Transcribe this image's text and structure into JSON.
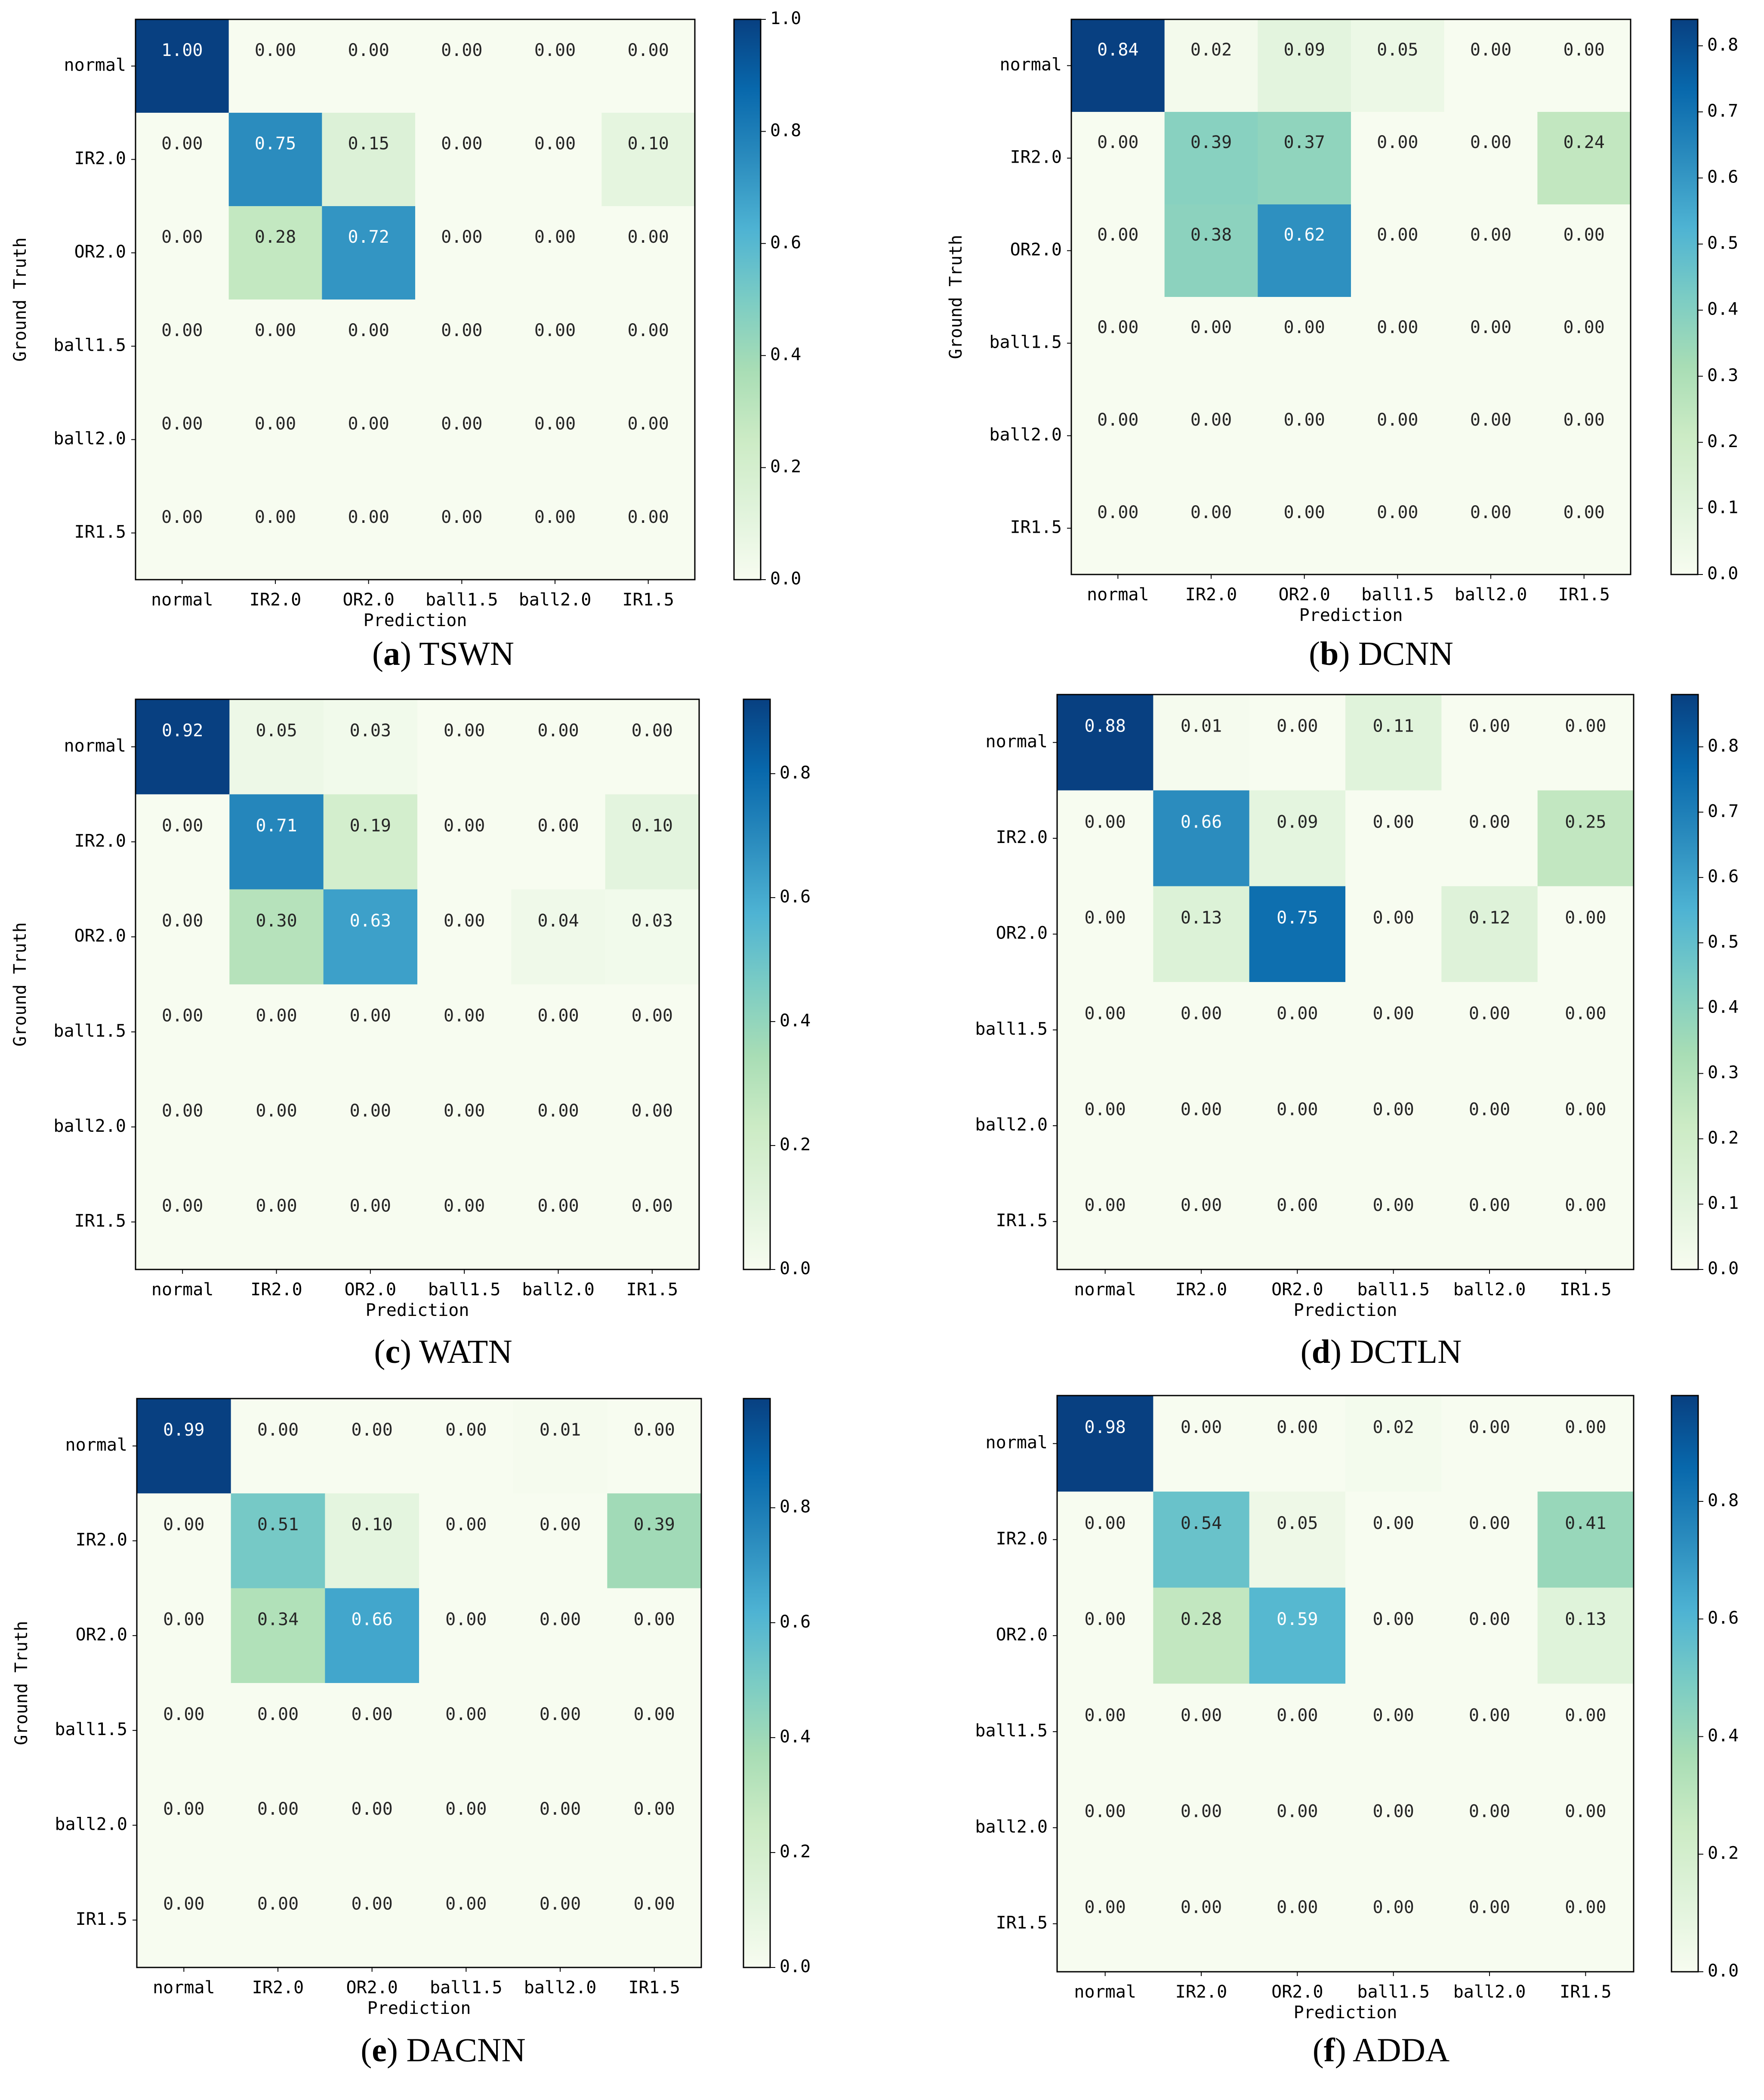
{
  "chart_data": [
    {
      "type": "heatmap",
      "panel_label": "a",
      "caption": "TSWN",
      "xlabel": "Prediction",
      "ylabel": "Ground Truth",
      "x_categories": [
        "normal",
        "IR2.0",
        "OR2.0",
        "ball1.5",
        "ball2.0",
        "IR1.5"
      ],
      "y_categories": [
        "normal",
        "IR2.0",
        "OR2.0",
        "ball1.5",
        "ball2.0",
        "IR1.5"
      ],
      "values": [
        [
          1.0,
          0.0,
          0.0,
          0.0,
          0.0,
          0.0
        ],
        [
          0.0,
          0.75,
          0.15,
          0.0,
          0.0,
          0.1
        ],
        [
          0.0,
          0.28,
          0.72,
          0.0,
          0.0,
          0.0
        ],
        [
          0.0,
          0.0,
          0.0,
          0.0,
          0.0,
          0.0
        ],
        [
          0.0,
          0.0,
          0.0,
          0.0,
          0.0,
          0.0
        ],
        [
          0.0,
          0.0,
          0.0,
          0.0,
          0.0,
          0.0
        ]
      ],
      "colorbar_range": [
        0,
        1.0
      ],
      "colorbar_ticks": [
        "0.0",
        "0.2",
        "0.4",
        "0.6",
        "0.8",
        "1.0"
      ]
    },
    {
      "type": "heatmap",
      "panel_label": "b",
      "caption": "DCNN",
      "xlabel": "Prediction",
      "ylabel": "Ground Truth",
      "x_categories": [
        "normal",
        "IR2.0",
        "OR2.0",
        "ball1.5",
        "ball2.0",
        "IR1.5"
      ],
      "y_categories": [
        "normal",
        "IR2.0",
        "OR2.0",
        "ball1.5",
        "ball2.0",
        "IR1.5"
      ],
      "values": [
        [
          0.84,
          0.02,
          0.09,
          0.05,
          0.0,
          0.0
        ],
        [
          0.0,
          0.39,
          0.37,
          0.0,
          0.0,
          0.24
        ],
        [
          0.0,
          0.38,
          0.62,
          0.0,
          0.0,
          0.0
        ],
        [
          0.0,
          0.0,
          0.0,
          0.0,
          0.0,
          0.0
        ],
        [
          0.0,
          0.0,
          0.0,
          0.0,
          0.0,
          0.0
        ],
        [
          0.0,
          0.0,
          0.0,
          0.0,
          0.0,
          0.0
        ]
      ],
      "colorbar_range": [
        0,
        0.84
      ],
      "colorbar_ticks": [
        "0.0",
        "0.1",
        "0.2",
        "0.3",
        "0.4",
        "0.5",
        "0.6",
        "0.7",
        "0.8"
      ]
    },
    {
      "type": "heatmap",
      "panel_label": "c",
      "caption": "WATN",
      "xlabel": "Prediction",
      "ylabel": "Ground Truth",
      "x_categories": [
        "normal",
        "IR2.0",
        "OR2.0",
        "ball1.5",
        "ball2.0",
        "IR1.5"
      ],
      "y_categories": [
        "normal",
        "IR2.0",
        "OR2.0",
        "ball1.5",
        "ball2.0",
        "IR1.5"
      ],
      "values": [
        [
          0.92,
          0.05,
          0.03,
          0.0,
          0.0,
          0.0
        ],
        [
          0.0,
          0.71,
          0.19,
          0.0,
          0.0,
          0.1
        ],
        [
          0.0,
          0.3,
          0.63,
          0.0,
          0.04,
          0.03
        ],
        [
          0.0,
          0.0,
          0.0,
          0.0,
          0.0,
          0.0
        ],
        [
          0.0,
          0.0,
          0.0,
          0.0,
          0.0,
          0.0
        ],
        [
          0.0,
          0.0,
          0.0,
          0.0,
          0.0,
          0.0
        ]
      ],
      "colorbar_range": [
        0,
        0.92
      ],
      "colorbar_ticks": [
        "0.0",
        "0.2",
        "0.4",
        "0.6",
        "0.8"
      ]
    },
    {
      "type": "heatmap",
      "panel_label": "d",
      "caption": "DCTLN",
      "xlabel": "Prediction",
      "ylabel": "",
      "x_categories": [
        "normal",
        "IR2.0",
        "OR2.0",
        "ball1.5",
        "ball2.0",
        "IR1.5"
      ],
      "y_categories": [
        "normal",
        "IR2.0",
        "OR2.0",
        "ball1.5",
        "ball2.0",
        "IR1.5"
      ],
      "values": [
        [
          0.88,
          0.01,
          0.0,
          0.11,
          0.0,
          0.0
        ],
        [
          0.0,
          0.66,
          0.09,
          0.0,
          0.0,
          0.25
        ],
        [
          0.0,
          0.13,
          0.75,
          0.0,
          0.12,
          0.0
        ],
        [
          0.0,
          0.0,
          0.0,
          0.0,
          0.0,
          0.0
        ],
        [
          0.0,
          0.0,
          0.0,
          0.0,
          0.0,
          0.0
        ],
        [
          0.0,
          0.0,
          0.0,
          0.0,
          0.0,
          0.0
        ]
      ],
      "colorbar_range": [
        0,
        0.88
      ],
      "colorbar_ticks": [
        "0.0",
        "0.1",
        "0.2",
        "0.3",
        "0.4",
        "0.5",
        "0.6",
        "0.7",
        "0.8"
      ]
    },
    {
      "type": "heatmap",
      "panel_label": "e",
      "caption": "DACNN",
      "xlabel": "Prediction",
      "ylabel": "Ground Truth",
      "x_categories": [
        "normal",
        "IR2.0",
        "OR2.0",
        "ball1.5",
        "ball2.0",
        "IR1.5"
      ],
      "y_categories": [
        "normal",
        "IR2.0",
        "OR2.0",
        "ball1.5",
        "ball2.0",
        "IR1.5"
      ],
      "values": [
        [
          0.99,
          0.0,
          0.0,
          0.0,
          0.01,
          0.0
        ],
        [
          0.0,
          0.51,
          0.1,
          0.0,
          0.0,
          0.39
        ],
        [
          0.0,
          0.34,
          0.66,
          0.0,
          0.0,
          0.0
        ],
        [
          0.0,
          0.0,
          0.0,
          0.0,
          0.0,
          0.0
        ],
        [
          0.0,
          0.0,
          0.0,
          0.0,
          0.0,
          0.0
        ],
        [
          0.0,
          0.0,
          0.0,
          0.0,
          0.0,
          0.0
        ]
      ],
      "colorbar_range": [
        0,
        0.99
      ],
      "colorbar_ticks": [
        "0.0",
        "0.2",
        "0.4",
        "0.6",
        "0.8"
      ]
    },
    {
      "type": "heatmap",
      "panel_label": "f",
      "caption": "ADDA",
      "xlabel": "Prediction",
      "ylabel": "",
      "x_categories": [
        "normal",
        "IR2.0",
        "OR2.0",
        "ball1.5",
        "ball2.0",
        "IR1.5"
      ],
      "y_categories": [
        "normal",
        "IR2.0",
        "OR2.0",
        "ball1.5",
        "ball2.0",
        "IR1.5"
      ],
      "values": [
        [
          0.98,
          0.0,
          0.0,
          0.02,
          0.0,
          0.0
        ],
        [
          0.0,
          0.54,
          0.05,
          0.0,
          0.0,
          0.41
        ],
        [
          0.0,
          0.28,
          0.59,
          0.0,
          0.0,
          0.13
        ],
        [
          0.0,
          0.0,
          0.0,
          0.0,
          0.0,
          0.0
        ],
        [
          0.0,
          0.0,
          0.0,
          0.0,
          0.0,
          0.0
        ],
        [
          0.0,
          0.0,
          0.0,
          0.0,
          0.0,
          0.0
        ]
      ],
      "colorbar_range": [
        0,
        0.98
      ],
      "colorbar_ticks": [
        "0.0",
        "0.2",
        "0.4",
        "0.6",
        "0.8"
      ]
    }
  ],
  "colormap": {
    "name": "GnBu",
    "stops": [
      "#f7fcf0",
      "#e0f3db",
      "#ccebc5",
      "#a8ddb5",
      "#7bccc4",
      "#4eb3d3",
      "#2b8cbe",
      "#0868ac",
      "#084081"
    ]
  }
}
